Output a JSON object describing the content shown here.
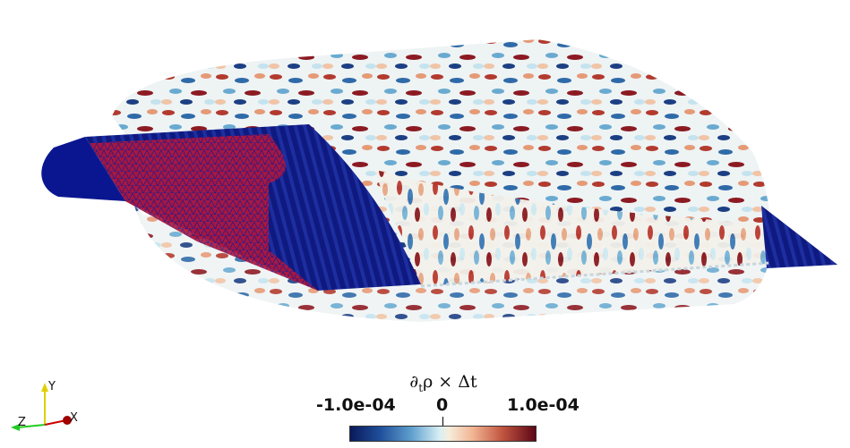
{
  "scene": {
    "description_colors": {
      "surface_negative": "#14237a",
      "surface_positive": "#7a1218",
      "mesh_red": "#c8203a",
      "mesh_blue": "#1a1a8c"
    }
  },
  "colorbar": {
    "title_main": "∂",
    "title_sub": "t",
    "title_rest": "ρ × Δt",
    "tick_min": "-1.0e-04",
    "tick_mid": "0",
    "tick_max": "1.0e-04",
    "colormap": "blue-white-red"
  },
  "orientation_axes": {
    "x_label": "X",
    "y_label": "Y",
    "z_label": "Z",
    "x_color": "#cc0000",
    "y_color": "#e0d000",
    "z_color": "#22cc22"
  }
}
